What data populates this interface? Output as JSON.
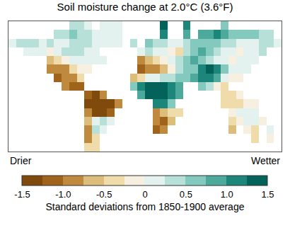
{
  "chart_data": {
    "type": "heatmap",
    "title": "Soil moisture change at 2.0°C (3.6°F)",
    "tick_labels": false,
    "xlim": [
      -180,
      180
    ],
    "ylim": [
      -60,
      90
    ],
    "x": [
      -175,
      -165,
      -155,
      -145,
      -135,
      -125,
      -115,
      -105,
      -95,
      -85,
      -75,
      -65,
      -55,
      -45,
      -35,
      -25,
      -15,
      -5,
      5,
      15,
      25,
      35,
      45,
      55,
      65,
      75,
      85,
      95,
      105,
      115,
      125,
      135,
      145,
      155,
      165,
      175
    ],
    "y": [
      85,
      75,
      65,
      55,
      45,
      35,
      25,
      15,
      5,
      -5,
      -15,
      -25,
      -35,
      -45,
      -55
    ],
    "z": [
      [
        null,
        null,
        null,
        null,
        null,
        null,
        null,
        null,
        0.3,
        0.3,
        0.2,
        null,
        0.1,
        0.1,
        0.1,
        null,
        null,
        null,
        null,
        null,
        1.3,
        null,
        null,
        1.0,
        null,
        null,
        null,
        null,
        0.6,
        null,
        null,
        null,
        null,
        null,
        null,
        null
      ],
      [
        null,
        null,
        null,
        null,
        null,
        null,
        0.3,
        0.4,
        0.5,
        0.4,
        0.3,
        0.1,
        0,
        0,
        0.1,
        null,
        null,
        null,
        null,
        null,
        1.0,
        null,
        null,
        0.8,
        null,
        0.8,
        0.9,
        1.0,
        0.9,
        0.7,
        0.6,
        0.5,
        0.5,
        0.4,
        0.3,
        null
      ],
      [
        0.2,
        0.3,
        0.4,
        0.3,
        0.2,
        0.3,
        0.2,
        0.2,
        0.3,
        0.4,
        0.3,
        0.2,
        0,
        0,
        0.1,
        null,
        0.3,
        null,
        0.5,
        0.4,
        0.3,
        0.2,
        0.1,
        0.3,
        0.5,
        0.6,
        0.7,
        0.6,
        0.4,
        0.3,
        0.2,
        0.1,
        0.2,
        0.3,
        0.3,
        0.2
      ],
      [
        null,
        null,
        0.2,
        0.2,
        0.1,
        -0.2,
        0,
        0.3,
        0.4,
        0.3,
        0.2,
        0.2,
        null,
        null,
        null,
        null,
        null,
        0.2,
        0.3,
        0.2,
        0.1,
        -0.2,
        -0.4,
        0.3,
        0.6,
        0.8,
        0.5,
        0.3,
        0.1,
        0,
        -0.2,
        0,
        0.2,
        0.3,
        null,
        null
      ],
      [
        null,
        null,
        null,
        null,
        null,
        -0.6,
        -0.5,
        -0.2,
        0.1,
        0.2,
        0.1,
        0.1,
        0.1,
        null,
        null,
        null,
        null,
        -0.8,
        -0.6,
        -0.3,
        -0.2,
        0.1,
        0.3,
        0.6,
        0.8,
        0.7,
        0.4,
        0.2,
        0.1,
        -0.1,
        0,
        0.1,
        0.2,
        null,
        null,
        null
      ],
      [
        null,
        null,
        null,
        null,
        null,
        -0.9,
        -1.0,
        -0.8,
        -0.4,
        -0.2,
        -0.1,
        null,
        null,
        null,
        null,
        null,
        null,
        -1.2,
        -1.0,
        -0.9,
        -0.6,
        -0.2,
        0.4,
        0.6,
        0.7,
        1.0,
        1.3,
        1.1,
        0.5,
        0.2,
        0.1,
        0.2,
        null,
        null,
        null,
        null
      ],
      [
        null,
        null,
        null,
        null,
        null,
        null,
        -1.1,
        -1.0,
        -0.8,
        -0.3,
        null,
        null,
        null,
        null,
        null,
        null,
        -0.6,
        -0.3,
        0,
        0.2,
        0.3,
        0.4,
        0.6,
        0.7,
        0.8,
        1.0,
        1.2,
        0.8,
        0.2,
        -0.1,
        -0.2,
        null,
        null,
        null,
        null,
        null
      ],
      [
        null,
        null,
        null,
        null,
        null,
        null,
        null,
        -1.0,
        -1.1,
        -1.2,
        null,
        null,
        null,
        null,
        null,
        null,
        0.6,
        1.0,
        1.3,
        1.4,
        1.3,
        1.2,
        0.9,
        null,
        null,
        0.6,
        0.4,
        -0.2,
        -0.4,
        null,
        null,
        null,
        null,
        null,
        null,
        null
      ],
      [
        null,
        null,
        null,
        null,
        null,
        null,
        null,
        null,
        null,
        null,
        -1.2,
        -1.3,
        -1.0,
        null,
        null,
        null,
        null,
        0.9,
        1.3,
        1.4,
        1.4,
        1.2,
        0.9,
        null,
        null,
        null,
        null,
        null,
        -0.4,
        -0.3,
        -0.2,
        null,
        null,
        null,
        null,
        null
      ],
      [
        null,
        null,
        null,
        null,
        null,
        null,
        null,
        null,
        null,
        null,
        -1.3,
        -1.5,
        -1.5,
        -1.3,
        -0.8,
        null,
        null,
        null,
        null,
        1.2,
        1.0,
        0.6,
        null,
        null,
        null,
        null,
        null,
        null,
        -0.4,
        -0.4,
        -0.3,
        -0.2,
        -0.1,
        null,
        null,
        null
      ],
      [
        null,
        null,
        null,
        null,
        null,
        null,
        null,
        null,
        null,
        null,
        -0.8,
        -1.3,
        -1.4,
        -1.1,
        null,
        null,
        null,
        null,
        null,
        -0.9,
        -0.7,
        -0.3,
        -0.4,
        null,
        null,
        null,
        null,
        null,
        null,
        -0.2,
        0,
        0.1,
        0.1,
        null,
        null,
        null
      ],
      [
        null,
        null,
        null,
        null,
        null,
        null,
        null,
        null,
        null,
        null,
        -0.6,
        0.2,
        0.3,
        0.1,
        null,
        null,
        null,
        null,
        null,
        -1.0,
        -1.1,
        -0.6,
        null,
        null,
        null,
        null,
        null,
        null,
        null,
        -0.3,
        -0.1,
        0.1,
        0,
        -0.1,
        null,
        null
      ],
      [
        null,
        null,
        null,
        null,
        null,
        null,
        null,
        null,
        null,
        null,
        -0.9,
        0.3,
        0.2,
        null,
        null,
        null,
        null,
        null,
        null,
        -1.1,
        -1.0,
        null,
        null,
        null,
        null,
        null,
        null,
        null,
        null,
        -0.6,
        null,
        -0.2,
        -0.3,
        null,
        0.1,
        null
      ],
      [
        null,
        null,
        null,
        null,
        null,
        null,
        null,
        null,
        null,
        null,
        -0.8,
        -0.5,
        null,
        null,
        null,
        null,
        null,
        null,
        null,
        null,
        null,
        null,
        null,
        null,
        null,
        null,
        null,
        null,
        null,
        null,
        null,
        null,
        -0.3,
        null,
        -0.2,
        null
      ],
      [
        null,
        null,
        null,
        null,
        null,
        null,
        null,
        null,
        null,
        null,
        -0.5,
        -0.3,
        null,
        null,
        null,
        null,
        null,
        null,
        null,
        null,
        null,
        null,
        null,
        null,
        null,
        null,
        null,
        null,
        null,
        null,
        null,
        null,
        null,
        null,
        null,
        null
      ]
    ],
    "colorbar": {
      "title": "Standard deviations from 1850-1900 average",
      "low_label": "Drier",
      "high_label": "Wetter",
      "range": [
        -1.5,
        1.5
      ],
      "ticks": [
        -1.5,
        {
          "value": -1,
          "label": "-1.0"
        },
        -0.5,
        0,
        0.5,
        {
          "value": 1,
          "label": "1.0"
        },
        1.5
      ],
      "colors": [
        "#7f4a0c",
        "#a0631b",
        "#c08a3e",
        "#dcbd7a",
        "#efdcaa",
        "#f7f0e0",
        "#e3f2ee",
        "#b7e0d8",
        "#83c9bd",
        "#4ea99d",
        "#1d867a",
        "#03625a"
      ]
    }
  }
}
